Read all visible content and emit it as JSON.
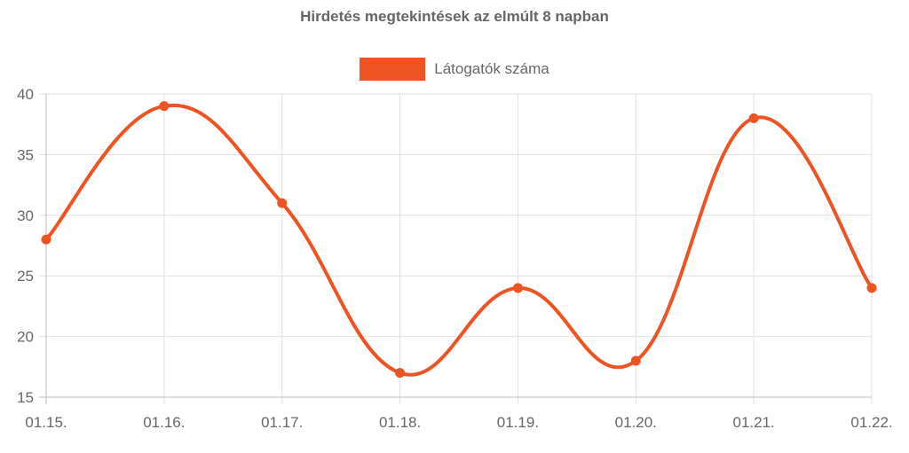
{
  "chart_data": {
    "type": "line",
    "title": "Hirdetés megtekintések az elmúlt 8 napban",
    "categories": [
      "01.15.",
      "01.16.",
      "01.17.",
      "01.18.",
      "01.19.",
      "01.20.",
      "01.21.",
      "01.22."
    ],
    "series": [
      {
        "name": "Látogatók száma",
        "values": [
          28,
          39,
          31,
          17,
          24,
          18,
          38,
          24
        ],
        "color": "#ee5322"
      }
    ],
    "ylim": [
      15,
      40
    ],
    "yticks": [
      "15",
      "20",
      "25",
      "30",
      "35",
      "40"
    ],
    "grid": true,
    "legend_position": "top",
    "curve": "smooth"
  }
}
